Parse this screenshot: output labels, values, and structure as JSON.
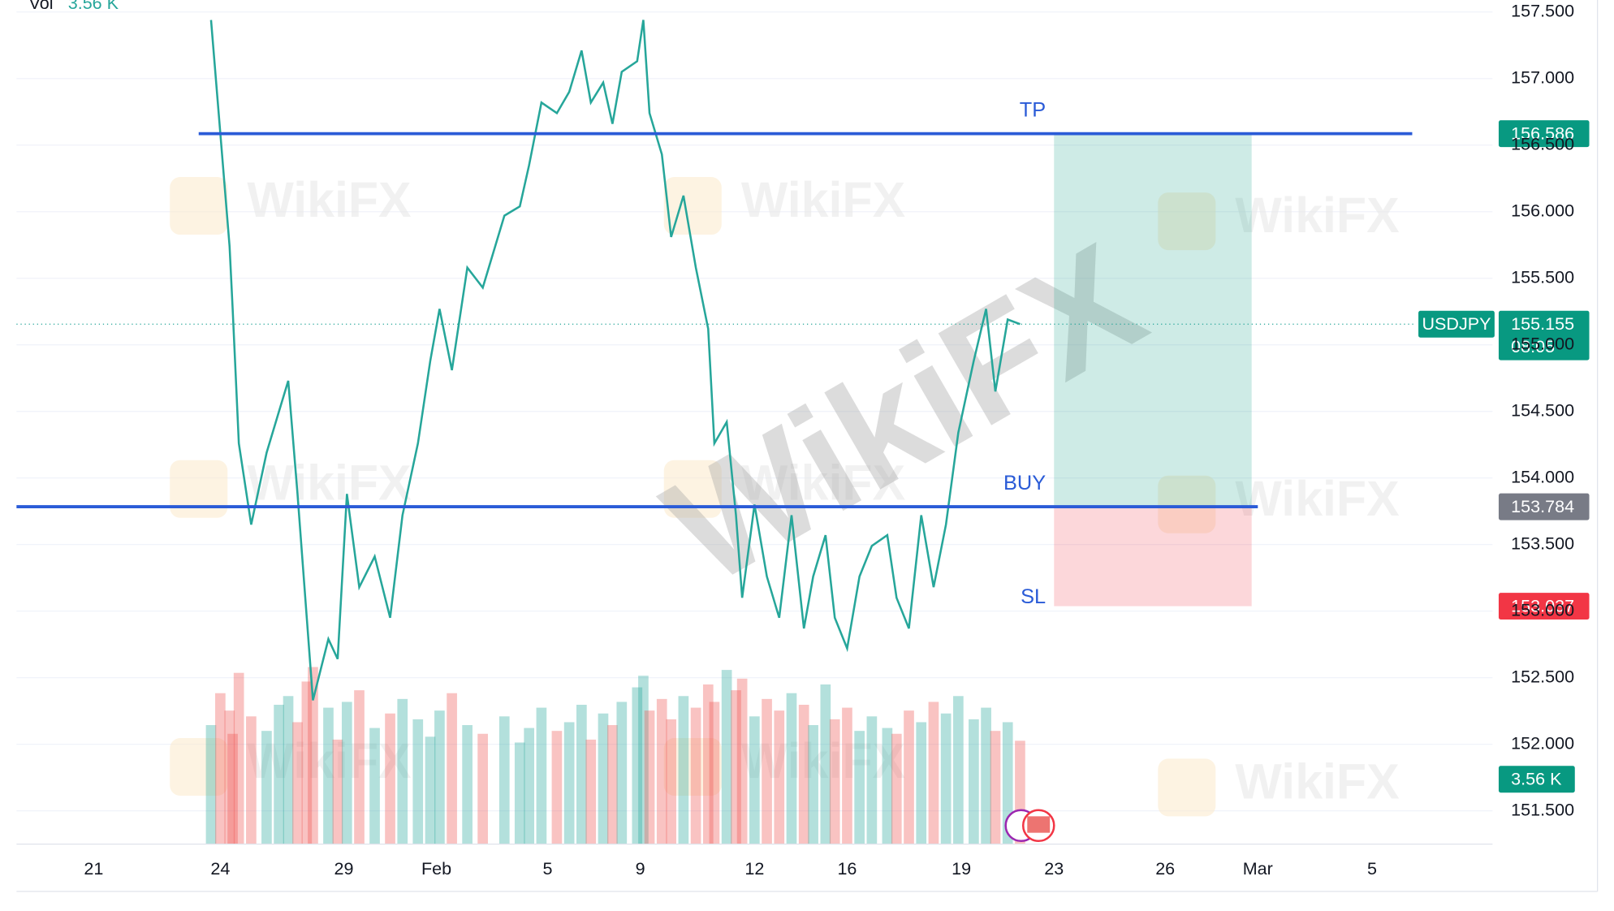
{
  "chart_data": {
    "type": "line",
    "symbol": "USDJPY",
    "watermark": "WikiFX",
    "volume_title": "Vol",
    "volume_last": 3.56,
    "volume_last_label": "3.56 K",
    "last_price": 155.155,
    "countdown": "08:05",
    "xlim": [
      0,
      47.8
    ],
    "ylim": [
      151.25,
      157.59
    ],
    "xticks": [
      {
        "value": 2.5,
        "label": "21"
      },
      {
        "value": 6.6,
        "label": "24"
      },
      {
        "value": 10.6,
        "label": "29"
      },
      {
        "value": 13.6,
        "label": "Feb"
      },
      {
        "value": 17.2,
        "label": "5"
      },
      {
        "value": 20.2,
        "label": "9"
      },
      {
        "value": 23.9,
        "label": "12"
      },
      {
        "value": 26.9,
        "label": "16"
      },
      {
        "value": 30.6,
        "label": "19"
      },
      {
        "value": 33.6,
        "label": "23"
      },
      {
        "value": 37.2,
        "label": "26"
      },
      {
        "value": 40.2,
        "label": "Mar"
      },
      {
        "value": 43.9,
        "label": "5"
      }
    ],
    "yticks": [
      {
        "value": 151.5,
        "label": "151.500"
      },
      {
        "value": 152,
        "label": "152.000"
      },
      {
        "value": 152.5,
        "label": "152.500"
      },
      {
        "value": 153,
        "label": "153.000"
      },
      {
        "value": 153.5,
        "label": "153.500"
      },
      {
        "value": 154,
        "label": "154.000"
      },
      {
        "value": 154.5,
        "label": "154.500"
      },
      {
        "value": 155,
        "label": "155.000"
      },
      {
        "value": 155.5,
        "label": "155.500"
      },
      {
        "value": 156,
        "label": "156.000"
      },
      {
        "value": 156.5,
        "label": "156.500"
      },
      {
        "value": 157,
        "label": "157.000"
      },
      {
        "value": 157.5,
        "label": "157.500"
      }
    ],
    "grid": true,
    "series": [
      {
        "color": "#26a69a",
        "down_color": "#ef5350",
        "x": [
          6.3,
          6.6,
          6.9,
          7.0,
          7.2,
          7.6,
          8.1,
          8.5,
          8.8,
          9.1,
          9.4,
          9.6,
          10.1,
          10.4,
          10.7,
          11.1,
          11.6,
          12.1,
          12.5,
          13.0,
          13.4,
          13.7,
          14.1,
          14.6,
          15.1,
          15.8,
          16.3,
          16.6,
          17.0,
          17.5,
          17.9,
          18.3,
          18.6,
          19.0,
          19.3,
          19.6,
          20.1,
          20.3,
          20.5,
          20.9,
          21.2,
          21.6,
          22.0,
          22.4,
          22.6,
          23.0,
          23.3,
          23.5,
          23.9,
          24.3,
          24.7,
          25.1,
          25.5,
          25.8,
          26.2,
          26.5,
          26.9,
          27.3,
          27.7,
          28.2,
          28.5,
          28.9,
          29.3,
          29.7,
          30.1,
          30.5,
          31.0,
          31.4,
          31.7,
          32.1,
          32.5
        ],
        "values": [
          157.44,
          156.59,
          155.74,
          155.27,
          154.26,
          153.65,
          154.19,
          154.5,
          154.73,
          153.88,
          152.95,
          152.33,
          152.79,
          152.64,
          153.88,
          153.18,
          153.41,
          152.95,
          153.72,
          154.26,
          154.88,
          155.27,
          154.81,
          155.58,
          155.43,
          155.97,
          156.04,
          156.35,
          156.82,
          156.74,
          156.9,
          157.21,
          156.82,
          156.97,
          156.66,
          157.05,
          157.13,
          157.44,
          156.74,
          156.43,
          155.81,
          156.12,
          155.58,
          155.12,
          154.26,
          154.42,
          153.72,
          153.1,
          153.8,
          153.26,
          152.95,
          153.72,
          152.87,
          153.26,
          153.57,
          152.95,
          152.72,
          153.26,
          153.49,
          153.57,
          153.1,
          152.87,
          153.72,
          153.18,
          153.65,
          154.34,
          154.88,
          155.27,
          154.65,
          155.19,
          155.155
        ],
        "volume": [
          4.1,
          5.2,
          4.6,
          3.8,
          5.9,
          4.4,
          3.9,
          4.8,
          5.1,
          4.2,
          5.6,
          6.1,
          4.7,
          3.6,
          4.9,
          5.3,
          4.0,
          4.5,
          5.0,
          4.3,
          3.7,
          4.6,
          5.2,
          4.1,
          3.8,
          4.4,
          3.5,
          4.0,
          4.7,
          3.9,
          4.2,
          4.8,
          3.6,
          4.5,
          4.1,
          4.9,
          5.4,
          5.8,
          4.6,
          5.0,
          4.3,
          5.1,
          4.7,
          5.5,
          4.9,
          6.0,
          5.3,
          5.7,
          4.4,
          5.0,
          4.6,
          5.2,
          4.8,
          4.1,
          5.5,
          4.3,
          4.7,
          3.9,
          4.4,
          4.0,
          3.8,
          4.6,
          4.2,
          4.9,
          4.5,
          5.1,
          4.3,
          4.7,
          3.9,
          4.2,
          3.56
        ]
      }
    ],
    "levels": [
      {
        "name": "TP",
        "value": 156.586,
        "x_start": 5.9,
        "x_end": 45.2,
        "label_color": "#089981"
      },
      {
        "name": "BUY",
        "value": 153.784,
        "x_start": 0,
        "x_end": 40.2,
        "label_color": "#787b86"
      },
      {
        "name": "SL",
        "value": 153.037,
        "label_color": "#f23645"
      }
    ],
    "position_x": [
      33.6,
      40.0
    ],
    "level_color": "#2a5bd7"
  }
}
